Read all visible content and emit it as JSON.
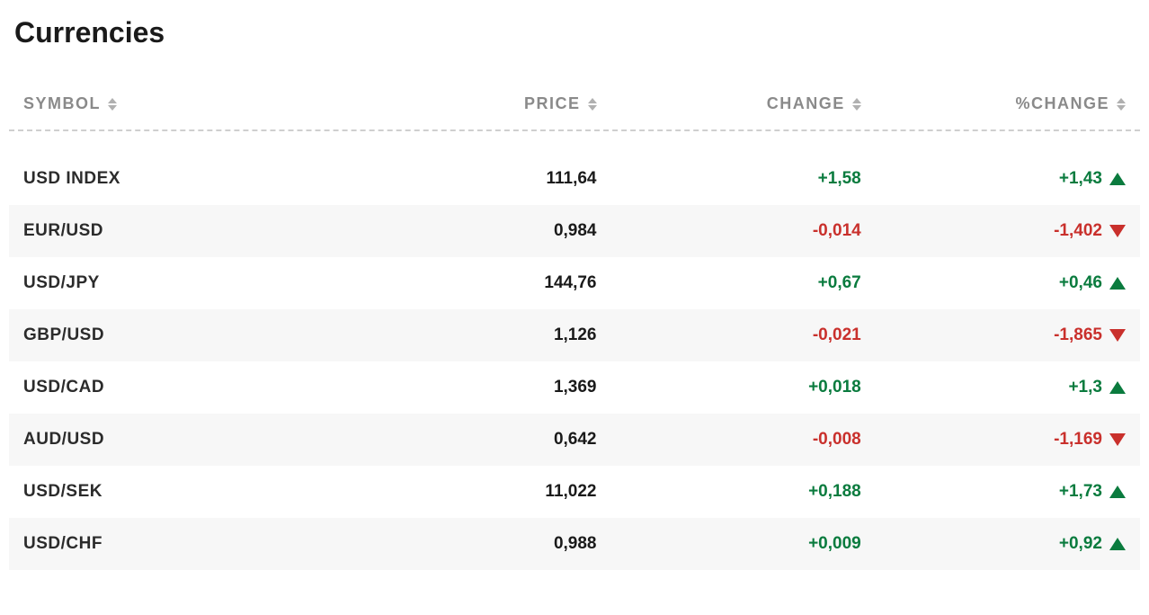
{
  "title": "Currencies",
  "columns": {
    "symbol": "SYMBOL",
    "price": "PRICE",
    "change": "CHANGE",
    "pct": "%CHANGE"
  },
  "colors": {
    "positive": "#0a7b3e",
    "negative": "#c9302c",
    "text": "#1a1a1a",
    "muted": "#8a8a8a",
    "row_alt_bg": "#f7f7f7",
    "background": "#ffffff",
    "dashed_border": "#cfcfcf"
  },
  "rows": [
    {
      "symbol": "USD INDEX",
      "price": "111,64",
      "change": "+1,58",
      "pct": "+1,43",
      "dir": "up"
    },
    {
      "symbol": "EUR/USD",
      "price": "0,984",
      "change": "-0,014",
      "pct": "-1,402",
      "dir": "down"
    },
    {
      "symbol": "USD/JPY",
      "price": "144,76",
      "change": "+0,67",
      "pct": "+0,46",
      "dir": "up"
    },
    {
      "symbol": "GBP/USD",
      "price": "1,126",
      "change": "-0,021",
      "pct": "-1,865",
      "dir": "down"
    },
    {
      "symbol": "USD/CAD",
      "price": "1,369",
      "change": "+0,018",
      "pct": "+1,3",
      "dir": "up"
    },
    {
      "symbol": "AUD/USD",
      "price": "0,642",
      "change": "-0,008",
      "pct": "-1,169",
      "dir": "down"
    },
    {
      "symbol": "USD/SEK",
      "price": "11,022",
      "change": "+0,188",
      "pct": "+1,73",
      "dir": "up"
    },
    {
      "symbol": "USD/CHF",
      "price": "0,988",
      "change": "+0,009",
      "pct": "+0,92",
      "dir": "up"
    }
  ]
}
